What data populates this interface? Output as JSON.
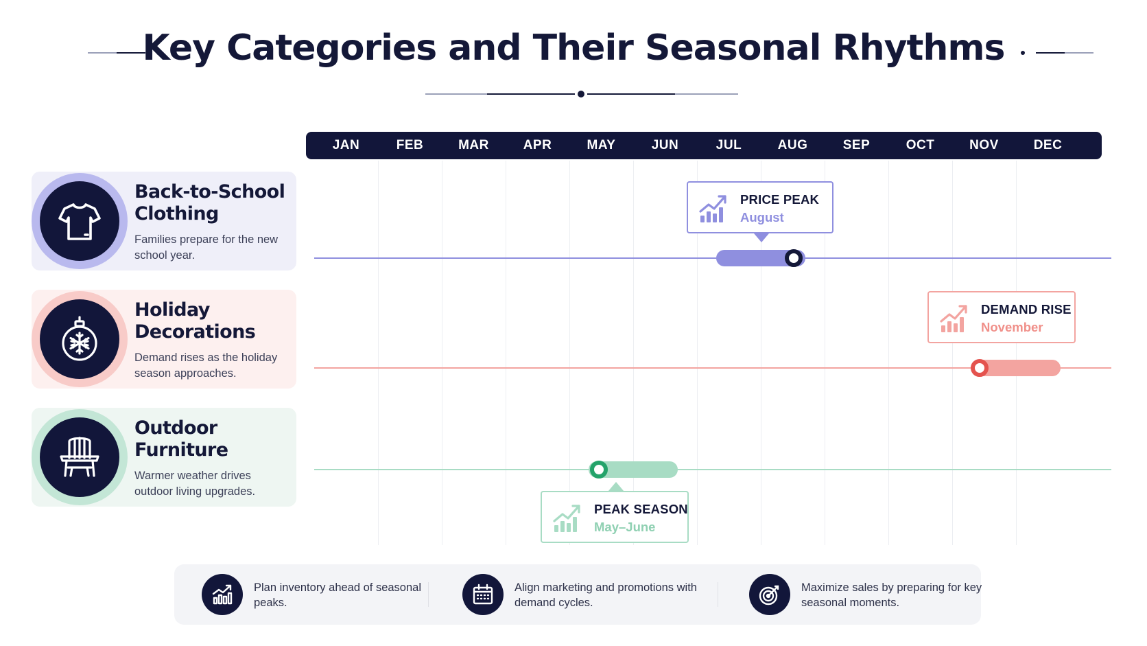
{
  "title": "Key Categories and Their Seasonal Rhythms",
  "months": [
    "JAN",
    "FEB",
    "MAR",
    "APR",
    "MAY",
    "JUN",
    "JUL",
    "AUG",
    "SEP",
    "OCT",
    "NOV",
    "DEC"
  ],
  "categories": [
    {
      "title": "Back-to-School Clothing",
      "description": "Families prepare for the new school year.",
      "icon": "tshirt-icon",
      "color": "#8f8fdf",
      "tint": "#efeff9",
      "ring": "#b9b9ee",
      "range_months": [
        "JUL",
        "AUG"
      ],
      "marker_month": "AUG",
      "callout": {
        "label": "PRICE PEAK",
        "value": "August"
      }
    },
    {
      "title": "Holiday Decorations",
      "description": "Demand rises as the holiday season approaches.",
      "icon": "ornament-icon",
      "color": "#f3a4a0",
      "tint": "#fdf0ef",
      "ring": "#f8cbc8",
      "marker_color": "#e4534e",
      "range_months": [
        "NOV",
        "DEC"
      ],
      "marker_month": "NOV",
      "callout": {
        "label": "DEMAND RISE",
        "value": "November"
      }
    },
    {
      "title": "Outdoor Furniture",
      "description": "Warmer weather drives outdoor living upgrades.",
      "icon": "chair-icon",
      "color": "#a8dcc4",
      "tint": "#eef6f2",
      "ring": "#c3e6d6",
      "marker_color": "#24a36a",
      "range_months": [
        "MAY",
        "JUN"
      ],
      "marker_month": "MAY",
      "callout": {
        "label": "PEAK SEASON",
        "value": "May–June"
      }
    }
  ],
  "footer": [
    {
      "text": "Plan inventory ahead of seasonal peaks.",
      "icon": "bar-chart-icon"
    },
    {
      "text": "Align marketing and promotions with demand cycles.",
      "icon": "calendar-icon"
    },
    {
      "text": "Maximize sales by preparing for key seasonal moments.",
      "icon": "target-icon"
    }
  ]
}
